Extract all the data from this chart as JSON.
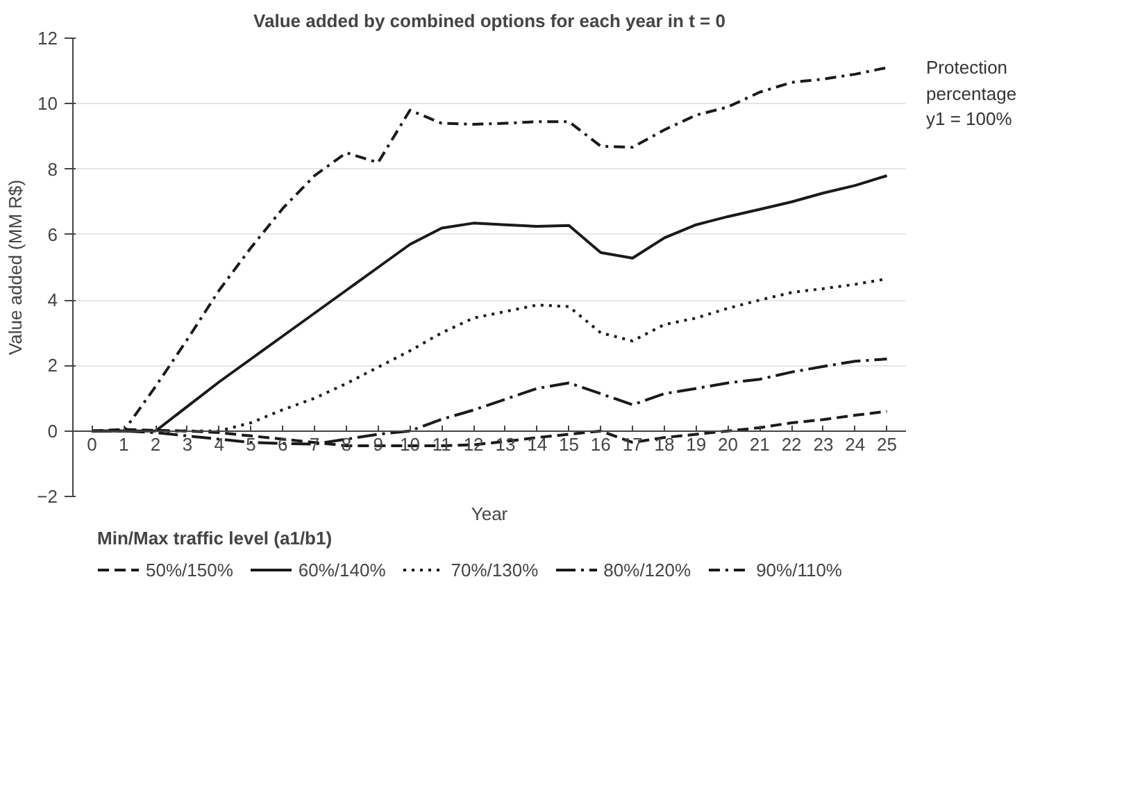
{
  "chart_data": {
    "type": "line",
    "title": "Value added by combined options for each year in t = 0",
    "xlabel": "Year",
    "ylabel": "Value added (MM R$)",
    "legend_title": "Min/Max traffic level (a1/b1)",
    "annotations": [
      "Protection\npercentage\ny1 = 100%"
    ],
    "x": [
      0,
      1,
      2,
      3,
      4,
      5,
      6,
      7,
      8,
      9,
      10,
      11,
      12,
      13,
      14,
      15,
      16,
      17,
      18,
      19,
      20,
      21,
      22,
      23,
      24,
      25
    ],
    "xlim": [
      -0.6,
      25.6
    ],
    "xticks": [
      0,
      1,
      2,
      3,
      4,
      5,
      6,
      7,
      8,
      9,
      10,
      11,
      12,
      13,
      14,
      15,
      16,
      17,
      18,
      19,
      20,
      21,
      22,
      23,
      24,
      25
    ],
    "ylim": [
      -2,
      12
    ],
    "yticks": [
      {
        "value": -2,
        "label": "−2"
      },
      0,
      2,
      4,
      6,
      8,
      10,
      12
    ],
    "grid": "y",
    "legend": "bottom",
    "marker": "none",
    "series": [
      {
        "name": "50%/150%",
        "color": "#1a1a1a",
        "line_style": "dashed",
        "values": [
          0,
          0.05,
          0.02,
          0,
          -0.05,
          -0.15,
          -0.25,
          -0.35,
          -0.45,
          -0.45,
          -0.45,
          -0.45,
          -0.42,
          -0.32,
          -0.2,
          -0.1,
          0,
          -0.35,
          -0.2,
          -0.1,
          0,
          0.1,
          0.25,
          0.35,
          0.48,
          0.6
        ]
      },
      {
        "name": "60%/140%",
        "color": "#1a1a1a",
        "line_style": "solid",
        "values": [
          0,
          0,
          0,
          0.75,
          1.5,
          2.2,
          2.9,
          3.6,
          4.3,
          5.0,
          5.7,
          6.2,
          6.35,
          6.3,
          6.25,
          6.28,
          5.45,
          5.28,
          5.9,
          6.3,
          6.55,
          6.77,
          7.0,
          7.27,
          7.5,
          7.8
        ]
      },
      {
        "name": "70%/130%",
        "color": "#1a1a1a",
        "line_style": "dotted",
        "values": [
          0,
          0,
          0,
          0,
          0,
          0.25,
          0.65,
          1.0,
          1.45,
          1.95,
          2.45,
          3.0,
          3.45,
          3.65,
          3.85,
          3.8,
          3.0,
          2.75,
          3.25,
          3.45,
          3.75,
          4.0,
          4.23,
          4.35,
          4.48,
          4.65
        ]
      },
      {
        "name": "80%/120%",
        "color": "#1a1a1a",
        "line_style": "longdashdot",
        "values": [
          0,
          0,
          -0.05,
          -0.15,
          -0.25,
          -0.35,
          -0.38,
          -0.4,
          -0.25,
          -0.1,
          0,
          0.36,
          0.64,
          0.97,
          1.3,
          1.47,
          1.14,
          0.8,
          1.14,
          1.3,
          1.47,
          1.58,
          1.8,
          1.97,
          2.13,
          2.2
        ]
      },
      {
        "name": "90%/110%",
        "color": "#1a1a1a",
        "line_style": "dashdot",
        "values": [
          0,
          0,
          1.36,
          2.8,
          4.3,
          5.6,
          6.8,
          7.8,
          8.5,
          8.2,
          9.8,
          9.4,
          9.37,
          9.4,
          9.45,
          9.45,
          8.7,
          8.67,
          9.2,
          9.65,
          9.9,
          10.35,
          10.65,
          10.75,
          10.9,
          11.1
        ]
      }
    ]
  }
}
